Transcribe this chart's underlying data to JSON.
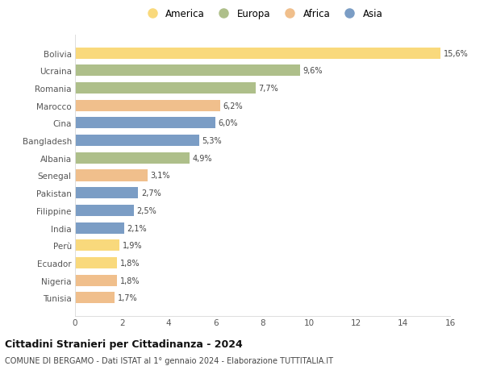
{
  "countries": [
    "Bolivia",
    "Ucraina",
    "Romania",
    "Marocco",
    "Cina",
    "Bangladesh",
    "Albania",
    "Senegal",
    "Pakistan",
    "Filippine",
    "India",
    "Perù",
    "Ecuador",
    "Nigeria",
    "Tunisia"
  ],
  "values": [
    15.6,
    9.6,
    7.7,
    6.2,
    6.0,
    5.3,
    4.9,
    3.1,
    2.7,
    2.5,
    2.1,
    1.9,
    1.8,
    1.8,
    1.7
  ],
  "labels": [
    "15,6%",
    "9,6%",
    "7,7%",
    "6,2%",
    "6,0%",
    "5,3%",
    "4,9%",
    "3,1%",
    "2,7%",
    "2,5%",
    "2,1%",
    "1,9%",
    "1,8%",
    "1,8%",
    "1,7%"
  ],
  "categories": [
    "America",
    "Europa",
    "Africa",
    "Asia"
  ],
  "continent": [
    "America",
    "Europa",
    "Europa",
    "Africa",
    "Asia",
    "Asia",
    "Europa",
    "Africa",
    "Asia",
    "Asia",
    "Asia",
    "America",
    "America",
    "Africa",
    "Africa"
  ],
  "colors": {
    "America": "#F9D97C",
    "Europa": "#AEBF8A",
    "Africa": "#F0BF8C",
    "Asia": "#7B9DC5"
  },
  "bg_color": "#ffffff",
  "title": "Cittadini Stranieri per Cittadinanza - 2024",
  "subtitle": "COMUNE DI BERGAMO - Dati ISTAT al 1° gennaio 2024 - Elaborazione TUTTITALIA.IT",
  "xlim": [
    0,
    16
  ],
  "xticks": [
    0,
    2,
    4,
    6,
    8,
    10,
    12,
    14,
    16
  ],
  "bar_height": 0.65
}
